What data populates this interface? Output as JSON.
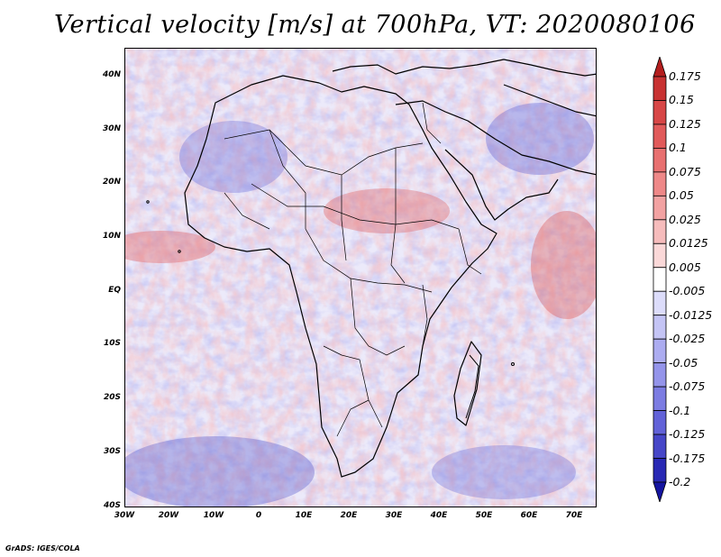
{
  "title": "Vertical velocity [m/s] at 700hPa, VT: 2020080106",
  "credit": "GrADS: IGES/COLA",
  "lat_labels": [
    "40N",
    "30N",
    "20N",
    "10N",
    "EQ",
    "10S",
    "20S",
    "30S",
    "40S"
  ],
  "lon_labels": [
    "30W",
    "20W",
    "10W",
    "0",
    "10E",
    "20E",
    "30E",
    "40E",
    "50E",
    "60E",
    "70E"
  ],
  "colorbar": {
    "levels": [
      "0.175",
      "0.15",
      "0.125",
      "0.1",
      "0.075",
      "0.05",
      "0.025",
      "0.0125",
      "0.005",
      "-0.005",
      "-0.0125",
      "-0.025",
      "-0.05",
      "-0.075",
      "-0.1",
      "-0.125",
      "-0.175",
      "-0.2"
    ],
    "colors": [
      "#b41e1e",
      "#c83232",
      "#d74646",
      "#e15a5a",
      "#e87070",
      "#ee8888",
      "#f2a2a2",
      "#f6bcbc",
      "#fad8d8",
      "#ffffff",
      "#dcdcfa",
      "#c4c4f5",
      "#acacf0",
      "#9494ea",
      "#7c7ce2",
      "#6262d8",
      "#4646c8",
      "#2828b4",
      "#1414a0"
    ]
  },
  "colors": {
    "positive": "#e0503c",
    "negative": "#5a5ad2",
    "background": "#ffffff"
  }
}
